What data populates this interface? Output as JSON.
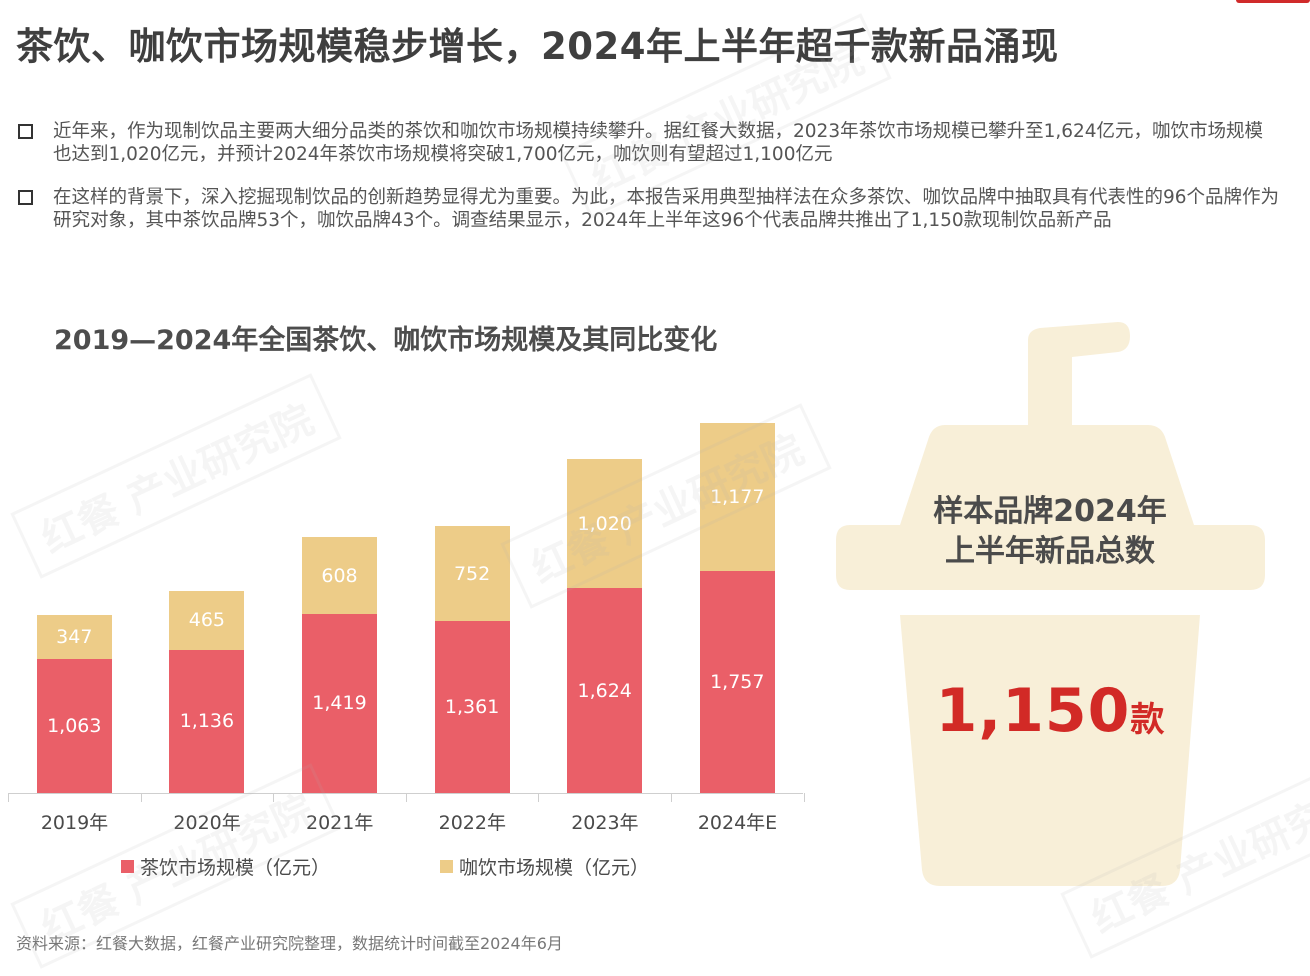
{
  "header": {
    "title": "茶饮、咖饮市场规模稳步增长，2024年上半年超千款新品涌现"
  },
  "bullets": [
    "近年来，作为现制饮品主要两大细分品类的茶饮和咖饮市场规模持续攀升。据红餐大数据，2023年茶饮市场规模已攀升至1,624亿元，咖饮市场规模也达到1,020亿元，并预计2024年茶饮市场规模将突破1,700亿元，咖饮则有望超过1,100亿元",
    "在这样的背景下，深入挖掘现制饮品的创新趋势显得尤为重要。为此，本报告采用典型抽样法在众多茶饮、咖饮品牌中抽取具有代表性的96个品牌作为研究对象，其中茶饮品牌53个，咖饮品牌43个。调查结果显示，2024年上半年这96个代表品牌共推出了1,150款现制饮品新产品"
  ],
  "chart_data": {
    "type": "bar",
    "stacked": true,
    "title": "2019—2024年全国茶饮、咖饮市场规模及其同比变化",
    "categories": [
      "2019年",
      "2020年",
      "2021年",
      "2022年",
      "2023年",
      "2024年E"
    ],
    "series": [
      {
        "name": "茶饮市场规模（亿元）",
        "color": "#ea5f68",
        "values": [
          1063,
          1136,
          1419,
          1361,
          1624,
          1757
        ],
        "labels": [
          "1,063",
          "1,136",
          "1,419",
          "1,361",
          "1,624",
          "1,757"
        ]
      },
      {
        "name": "咖饮市场规模（亿元）",
        "color": "#edcc88",
        "values": [
          347,
          465,
          608,
          752,
          1020,
          1177
        ],
        "labels": [
          "347",
          "465",
          "608",
          "752",
          "1,020",
          "1,177"
        ]
      }
    ],
    "xlabel": "",
    "ylabel": "",
    "grid": false,
    "legend_position": "bottom"
  },
  "callout": {
    "label_line1": "样本品牌2024年",
    "label_line2": "上半年新品总数",
    "number": "1,150",
    "unit": "款",
    "number_color": "#d22a26",
    "cup_color": "#f8efd8"
  },
  "footer": {
    "source": "资料来源：红餐大数据，红餐产业研究院整理，数据统计时间截至2024年6月"
  },
  "watermark": {
    "text": "红餐 产业研究院"
  }
}
